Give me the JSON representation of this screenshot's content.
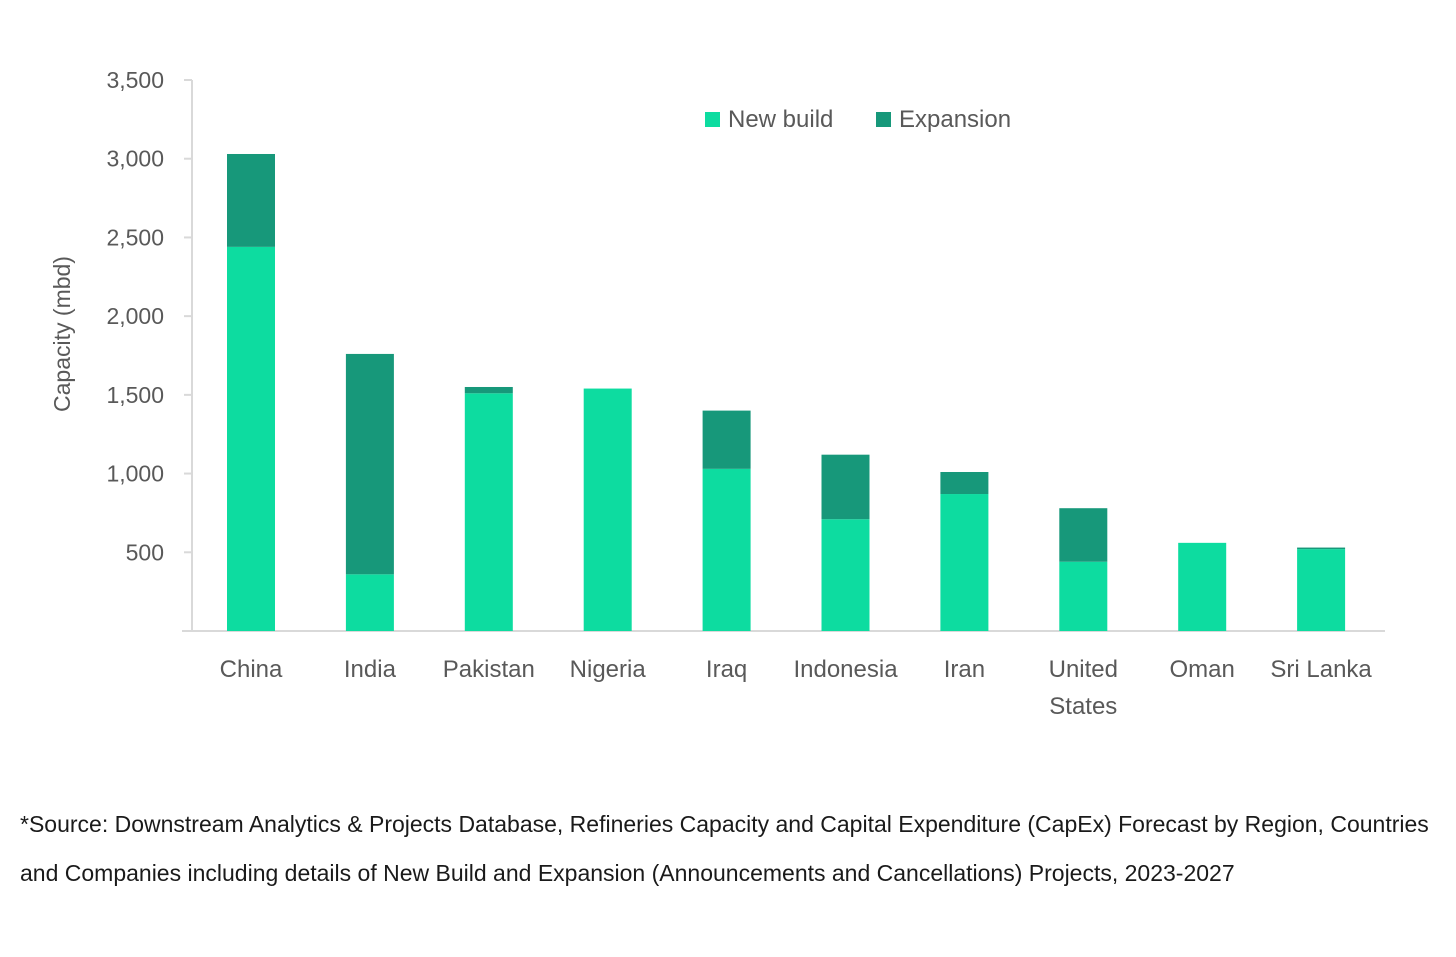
{
  "chart_data": {
    "type": "bar",
    "stacked": true,
    "title": "",
    "xlabel": "",
    "ylabel": "Capacity (mbd)",
    "ylim": [
      0,
      3500
    ],
    "yticks": [
      500,
      1000,
      1500,
      2000,
      2500,
      3000,
      3500
    ],
    "ytick_labels": [
      "500",
      "1,000",
      "1,500",
      "2,000",
      "2,500",
      "3,000",
      "3,500"
    ],
    "categories": [
      "China",
      "India",
      "Pakistan",
      "Nigeria",
      "Iraq",
      "Indonesia",
      "Iran",
      "United States",
      "Oman",
      "Sri Lanka"
    ],
    "category_lines": [
      [
        "China"
      ],
      [
        "India"
      ],
      [
        "Pakistan"
      ],
      [
        "Nigeria"
      ],
      [
        "Iraq"
      ],
      [
        "Indonesia"
      ],
      [
        "Iran"
      ],
      [
        "United",
        "States"
      ],
      [
        "Oman"
      ],
      [
        "Sri Lanka"
      ]
    ],
    "series": [
      {
        "name": "New build",
        "color": "#0ddca0",
        "values": [
          2440,
          360,
          1510,
          1540,
          1030,
          710,
          870,
          440,
          560,
          520
        ]
      },
      {
        "name": "Expansion",
        "color": "#17987a",
        "values": [
          590,
          1400,
          40,
          0,
          370,
          410,
          140,
          340,
          0,
          10
        ]
      }
    ],
    "legend": {
      "position": "top-right",
      "entries": [
        "New build",
        "Expansion"
      ]
    },
    "grid": false
  },
  "source_note": "*Source: Downstream Analytics & Projects Database, Refineries Capacity and Capital Expenditure (CapEx) Forecast by Region, Countries and Companies including details of New Build and Expansion (Announcements and Cancellations) Projects, 2023-2027"
}
